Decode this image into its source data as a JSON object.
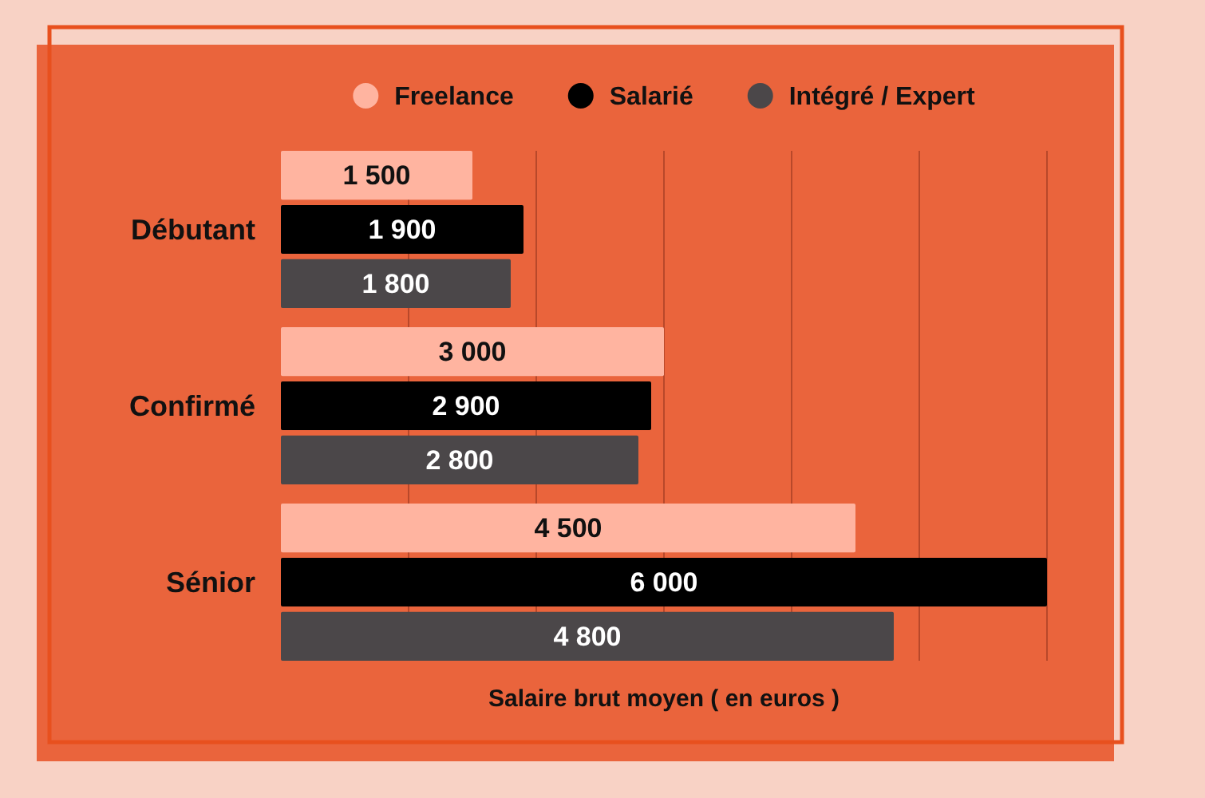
{
  "chart_data": {
    "type": "bar",
    "orientation": "horizontal",
    "categories": [
      "Débutant",
      "Confirmé",
      "Sénior"
    ],
    "series": [
      {
        "name": "Freelance",
        "color": "#ffb4a0",
        "values": [
          1500,
          3000,
          4500
        ],
        "value_labels": [
          "1 500",
          "3 000",
          "4 500"
        ]
      },
      {
        "name": "Salarié",
        "color": "#000000",
        "values": [
          1900,
          2900,
          6000
        ],
        "value_labels": [
          "1 900",
          "2 900",
          "6 000"
        ]
      },
      {
        "name": "Intégré / Expert",
        "color": "#4b4749",
        "values": [
          1800,
          2800,
          4800
        ],
        "value_labels": [
          "1 800",
          "2 800",
          "4 800"
        ]
      }
    ],
    "xlabel": "Salaire brut moyen ( en euros )",
    "xlim": [
      0,
      6000
    ],
    "xticks": [
      {
        "value": 1000,
        "label": null
      },
      {
        "value": 2000,
        "label": null
      },
      {
        "value": 3000,
        "label": null
      },
      {
        "value": 4000,
        "label": null
      },
      {
        "value": 5000,
        "label": null
      },
      {
        "value": 6000,
        "label": null
      }
    ],
    "grid": "x",
    "legend": "top",
    "tick_labels": "y"
  }
}
